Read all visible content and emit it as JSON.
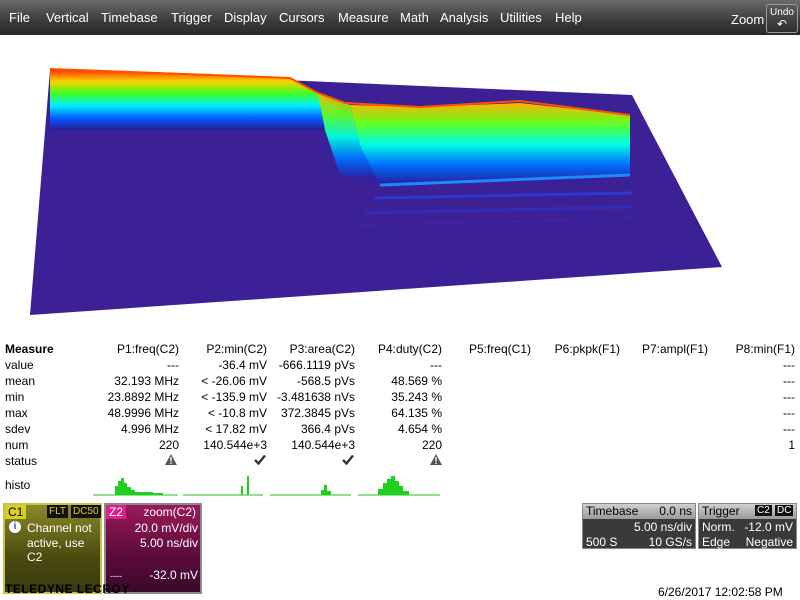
{
  "menu": [
    "File",
    "Vertical",
    "Timebase",
    "Trigger",
    "Display",
    "Cursors",
    "Measure",
    "Math",
    "Analysis",
    "Utilities",
    "Help"
  ],
  "zoom_label": "Zoom",
  "undo_label": "Undo",
  "undo_icon": "↶",
  "measure": {
    "title": "Measure",
    "headers": [
      "P1:freq(C2)",
      "P2:min(C2)",
      "P3:area(C2)",
      "P4:duty(C2)",
      "P5:freq(C1)",
      "P6:pkpk(F1)",
      "P7:ampl(F1)",
      "P8:min(F1)"
    ],
    "row_labels": [
      "value",
      "mean",
      "min",
      "max",
      "sdev",
      "num",
      "status"
    ],
    "rows": [
      [
        "---",
        "-36.4 mV",
        "-666.1119 pVs",
        "---",
        "",
        "",
        "",
        "---"
      ],
      [
        "32.193 MHz",
        "< -26.06 mV",
        "-568.5 pVs",
        "48.569 %",
        "",
        "",
        "",
        "---"
      ],
      [
        "23.8892 MHz",
        "< -135.9 mV",
        "-3.481638 nVs",
        "35.243 %",
        "",
        "",
        "",
        "---"
      ],
      [
        "48.9996 MHz",
        "< -10.8 mV",
        "372.3845 pVs",
        "64.135 %",
        "",
        "",
        "",
        "---"
      ],
      [
        "4.996 MHz",
        "< 17.82 mV",
        "366.4 pVs",
        "4.654 %",
        "",
        "",
        "",
        "---"
      ],
      [
        "220",
        "140.544e+3",
        "140.544e+3",
        "220",
        "",
        "",
        "",
        "1"
      ]
    ],
    "status": [
      "warning-icon",
      "check-icon",
      "check-icon",
      "warning-icon",
      "",
      "",
      "",
      ""
    ],
    "histo_label": "histo"
  },
  "c1": {
    "name": "C1",
    "badge1": "FLT",
    "badge2": "DC50",
    "info_icon": "i",
    "msg_line1": "Channel not",
    "msg_line2": "active, use",
    "msg_line3": "C2",
    "color": "#d8d020"
  },
  "z2": {
    "name": "Z2",
    "title": "zoom(C2)",
    "vdiv": "20.0 mV/div",
    "tdiv": "5.00 ns/div",
    "offset": "-32.0 mV",
    "color": "#e0208a"
  },
  "timebase": {
    "title": "Timebase",
    "delay": "0.0 ns",
    "tdiv": "5.00 ns/div",
    "samples": "500 S",
    "rate": "10 GS/s"
  },
  "trigger": {
    "title": "Trigger",
    "badge1": "C2",
    "badge2": "DC",
    "mode": "Norm.",
    "level": "-12.0 mV",
    "type": "Edge",
    "slope": "Negative"
  },
  "footer": {
    "brand": "TELEDYNE LECROY",
    "datetime": "6/26/2017 12:02:58 PM"
  }
}
